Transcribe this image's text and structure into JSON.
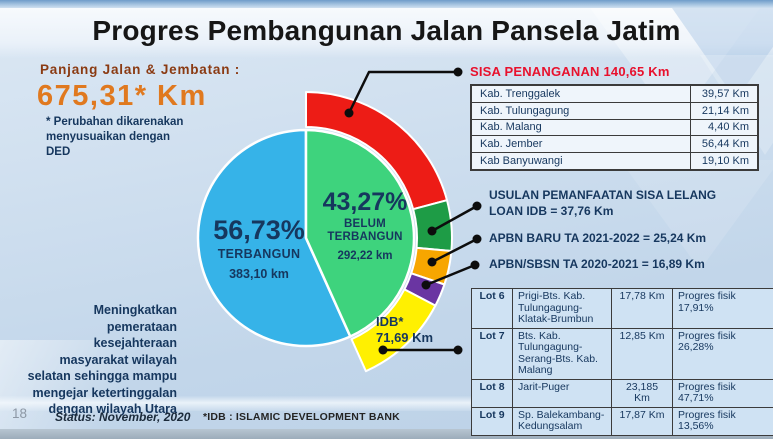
{
  "slide": {
    "title": "Progres Pembangunan Jalan Pansela Jatim",
    "page_number": "18",
    "status": "Status: November, 2020",
    "idb_note": "*IDB : ISLAMIC DEVELOPMENT BANK"
  },
  "left_panel": {
    "length_label": "Panjang Jalan & Jembatan :",
    "length_value": "675,31* Km",
    "footnote": "* Perubahan dikarenakan menyusuaikan dengan DED",
    "mission_text": "Meningkatkan pemerataan kesejahteraan masyarakat wilayah selatan sehingga mampu mengejar ketertinggalan dengan wilayah Utara"
  },
  "chart_data": {
    "type": "pie",
    "title": "Progres Pembangunan Jalan Pansela Jatim",
    "total_km": 675.31,
    "unit": "Km",
    "slices": [
      {
        "name": "TERBANGUN",
        "value": 383.1,
        "percent": 56.73,
        "percent_label": "56,73%",
        "value_label": "383,10 km",
        "color": "#36b3e8"
      },
      {
        "name": "BELUM TERBANGUN",
        "value": 292.22,
        "percent": 43.27,
        "percent_label": "43,27%",
        "name_line1": "BELUM",
        "name_line2": "TERBANGUN",
        "value_label": "292,22 km",
        "color": "#3ed37d"
      }
    ],
    "outer_segments": [
      {
        "name": "SISA PENANGANAN",
        "value": 140.65,
        "color": "#ed1c16"
      },
      {
        "name": "USULAN PEMANFAATAN SISA LELANG LOAN IDB",
        "value": 37.76,
        "color": "#1e9c46"
      },
      {
        "name": "APBN BARU TA 2021-2022",
        "value": 25.24,
        "color": "#f7a600"
      },
      {
        "name": "APBN/SBSN TA 2020-2021",
        "value": 16.89,
        "color": "#6a35a2"
      },
      {
        "name": "IDB",
        "value": 71.69,
        "color": "#fff001"
      }
    ],
    "idb_label": {
      "line1": "IDB*",
      "line2": "71,69 Km"
    },
    "legend_position": "right",
    "grid": false
  },
  "sisa_section": {
    "header": "SISA PENANGANAN 140,65 Km",
    "rows": [
      {
        "region": "Kab. Trenggalek",
        "length": "39,57 Km"
      },
      {
        "region": "Kab. Tulungagung",
        "length": "21,14 Km"
      },
      {
        "region": "Kab. Malang",
        "length": "4,40 Km"
      },
      {
        "region": "Kab. Jember",
        "length": "56,44 Km"
      },
      {
        "region": "Kab Banyuwangi",
        "length": "19,10 Km"
      }
    ]
  },
  "funding_items": [
    {
      "line1": "USULAN PEMANFAATAN SISA LELANG",
      "line2": "LOAN IDB = 37,76 Km"
    },
    {
      "line1": "APBN BARU TA 2021-2022 = 25,24 Km",
      "line2": ""
    },
    {
      "line1": "APBN/SBSN TA 2020-2021 = 16,89 Km",
      "line2": ""
    }
  ],
  "lot_table": {
    "rows": [
      {
        "lot": "Lot 6",
        "segment": "Prigi-Bts. Kab. Tulungagung-Klatak-Brumbun",
        "length": "17,78 Km",
        "progress": "Progres fisik 17,91%"
      },
      {
        "lot": "Lot 7",
        "segment": "Bts. Kab. Tulungagung-Serang-Bts. Kab. Malang",
        "length": "12,85 Km",
        "progress": "Progres fisik 26,28%"
      },
      {
        "lot": "Lot 8",
        "segment": "Jarit-Puger",
        "length": "23,185 Km",
        "progress": "Progres fisik 47,71%"
      },
      {
        "lot": "Lot 9",
        "segment": "Sp. Balekambang-Kedungsalam",
        "length": "17,87 Km",
        "progress": "Progres fisik 13,56%"
      }
    ]
  }
}
